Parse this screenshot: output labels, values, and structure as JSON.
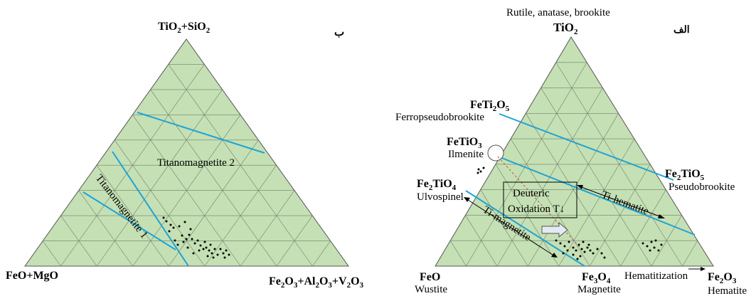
{
  "left_diagram": {
    "marker": "ب",
    "apex_top": [
      "TiO",
      "2",
      "+SiO",
      "2"
    ],
    "apex_left": "FeO+MgO",
    "apex_right": [
      "Fe",
      "2",
      "O",
      "3",
      "+Al",
      "2",
      "O",
      "3",
      "+V",
      "2",
      "O",
      "3"
    ],
    "field_label_1": "Titanomagnetite 2",
    "field_label_2": "Titanomagnetite 1",
    "boundary_color": "#1fa3d6",
    "fill_color": "#c5e0b4"
  },
  "right_diagram": {
    "marker": "الف",
    "apex_top_minerals": "Rutile, anatase, brookite",
    "apex_top": [
      "TiO",
      "2"
    ],
    "apex_left": "FeO",
    "apex_left_mineral": "Wustite",
    "apex_right": [
      "Fe",
      "2",
      "O",
      "3"
    ],
    "apex_right_mineral": "Hematite",
    "fe3o4": [
      "Fe",
      "3",
      "O",
      "4"
    ],
    "fe3o4_mineral": "Magnetite",
    "feti2o5": [
      "FeTi",
      "2",
      "O",
      "5"
    ],
    "feti2o5_mineral": "Ferropseudobrookite",
    "fetio3": [
      "FeTiO",
      "3"
    ],
    "fetio3_mineral": "Ilmenite",
    "fe2tio4": [
      "Fe",
      "2",
      "TiO",
      "4"
    ],
    "fe2tio4_mineral": "Ulvospinel",
    "fe2tio5": [
      "Fe",
      "2",
      "TiO",
      "5"
    ],
    "fe2tio5_mineral": "Pseudobrookite",
    "box_line1": "Deuteric",
    "box_line2": "Oxidation T↓",
    "ti_hematite": "Ti-hematite",
    "ti_magnetite": "Ti-magnetite",
    "hematitization": "Hematitization",
    "boundary_color": "#1fa3d6",
    "fill_color": "#c5e0b4"
  }
}
